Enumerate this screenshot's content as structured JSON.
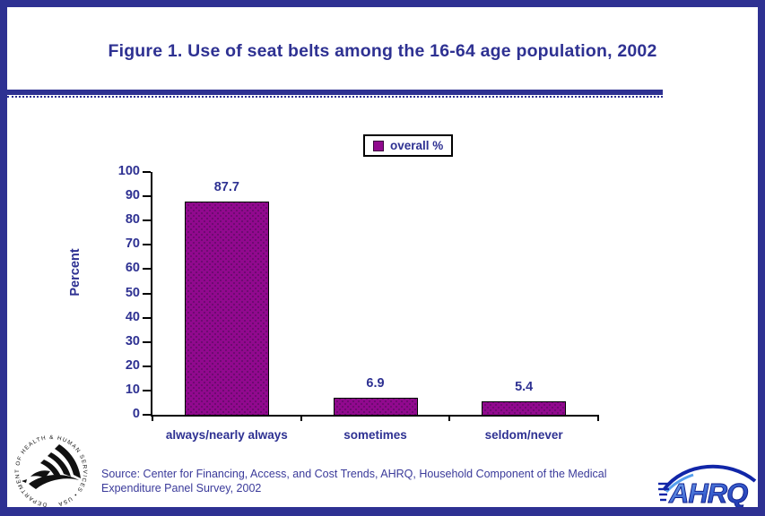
{
  "page": {
    "border_color": "#2E3192",
    "background_color": "#FFFFFF"
  },
  "chart_data": {
    "type": "bar",
    "title": "Figure 1. Use of seat belts among the 16-64 age population, 2002",
    "categories": [
      "always/nearly always",
      "sometimes",
      "seldom/never"
    ],
    "series": [
      {
        "name": "overall %",
        "values": [
          87.7,
          6.9,
          5.4
        ]
      }
    ],
    "xlabel": "",
    "ylabel": "Percent",
    "ylim": [
      0,
      100
    ],
    "yticks": [
      0,
      10,
      20,
      30,
      40,
      50,
      60,
      70,
      80,
      90,
      100
    ],
    "grid": false,
    "legend_position": "top-center",
    "bar_color": "#91098E",
    "bar_dot_color": "#6B0A6F",
    "label_color": "#2E3192",
    "axis_color": "#000000"
  },
  "legend": {
    "label": "overall %",
    "swatch_color": "#91098E"
  },
  "source": {
    "lines": [
      "Source: Center for Financing, Access, and Cost Trends, AHRQ, Household Component of the Medical",
      "Expenditure Panel Survey, 2002"
    ]
  },
  "footer": {
    "hhs_seal_text": "DEPARTMENT OF HEALTH & HUMAN SERVICES • USA",
    "ahrq_logo_text": "AHRQ"
  }
}
